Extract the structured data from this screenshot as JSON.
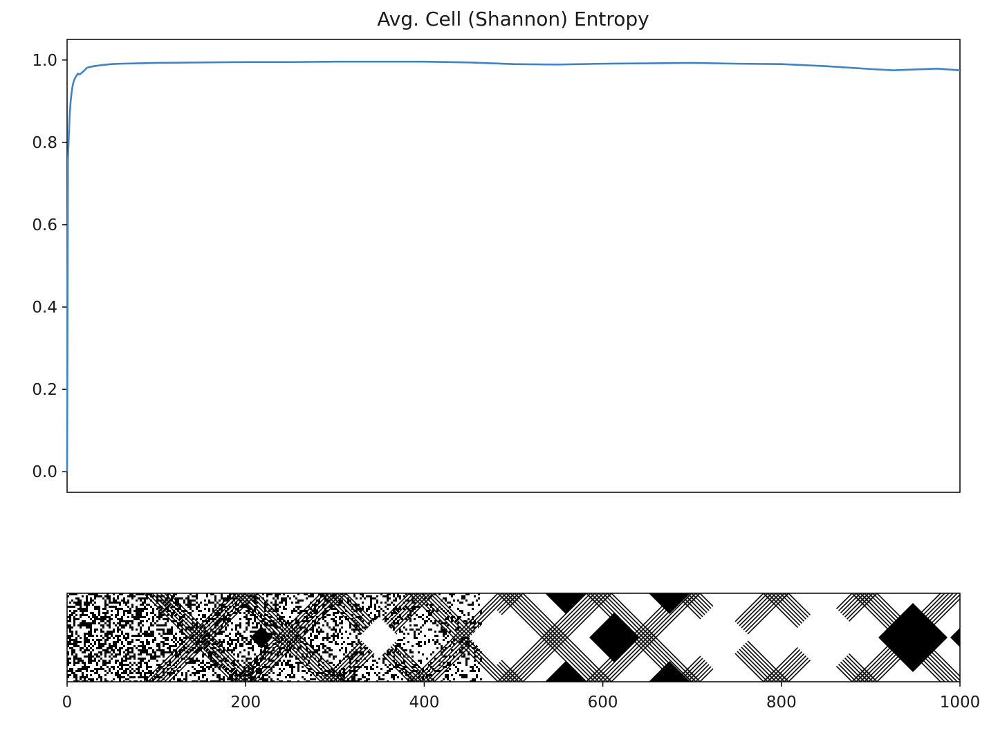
{
  "figure": {
    "title": "Avg. Cell (Shannon) Entropy"
  },
  "chart_data": [
    {
      "type": "line",
      "title": "Avg. Cell (Shannon) Entropy",
      "xlabel": "",
      "ylabel": "",
      "xlim": [
        0,
        1000
      ],
      "ylim": [
        -0.05,
        1.05
      ],
      "xticks_shown": false,
      "yticks": [
        "0.0",
        "0.2",
        "0.4",
        "0.6",
        "0.8",
        "1.0"
      ],
      "grid": false,
      "series": [
        {
          "color": "#3c84c4",
          "x": [
            0,
            1,
            2,
            3,
            4,
            5,
            6,
            7,
            8,
            10,
            12,
            14,
            16,
            18,
            20,
            22,
            25,
            30,
            40,
            50,
            60,
            80,
            100,
            150,
            200,
            250,
            300,
            350,
            400,
            450,
            500,
            550,
            600,
            650,
            700,
            750,
            800,
            850,
            900,
            925,
            950,
            975,
            1000
          ],
          "y": [
            0.0,
            0.76,
            0.82,
            0.87,
            0.9,
            0.92,
            0.935,
            0.945,
            0.952,
            0.96,
            0.967,
            0.965,
            0.968,
            0.972,
            0.976,
            0.981,
            0.983,
            0.985,
            0.988,
            0.99,
            0.991,
            0.992,
            0.993,
            0.994,
            0.995,
            0.995,
            0.996,
            0.996,
            0.996,
            0.994,
            0.99,
            0.989,
            0.991,
            0.992,
            0.993,
            0.991,
            0.99,
            0.985,
            0.978,
            0.975,
            0.977,
            0.979,
            0.975
          ]
        }
      ]
    },
    {
      "type": "heatmap",
      "title": "",
      "colormap": [
        "#ffffff",
        "#000000"
      ],
      "xlim": [
        0,
        1000
      ],
      "xticks": [
        "0",
        "200",
        "400",
        "600",
        "800",
        "1000"
      ],
      "yticks_shown": false,
      "grid": false
    }
  ]
}
